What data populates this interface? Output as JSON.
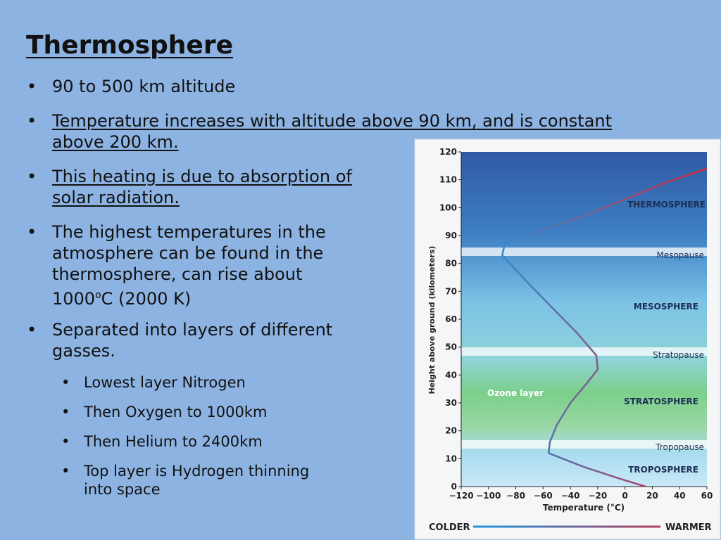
{
  "slide": {
    "title": "Thermosphere",
    "bullets": [
      "90 to 500 km altitude",
      "Temperature increases with altitude above 90 km,  and is constant above 200 km.",
      "This heating is due to absorption of solar radiation.",
      [
        "The highest temperatures in the atmosphere can be found in the thermosphere,  can rise about 1000",
        "o",
        "C (2000 K)"
      ],
      "Separated into layers of different gasses."
    ],
    "sub_bullets": [
      "Lowest layer Nitrogen",
      "Then Oxygen to 1000km",
      "Then Helium to 2400km",
      "Top layer is Hydrogen thinning into space"
    ]
  },
  "chart_data": {
    "type": "line",
    "x_label": "Temperature (°C)",
    "y_label": "Height above ground (kilometers)",
    "annotations": [
      "THERMOSPHERE",
      "Mesopause",
      "MESOSPHERE",
      "Stratopause",
      "Ozone layer",
      "STRATOSPHERE",
      "Tropopause",
      "TROPOSPHERE"
    ],
    "scale_left": "COLDER",
    "scale_right": "WARMER",
    "x": [
      15,
      -5,
      -30,
      -56,
      -55,
      -50,
      -40,
      -28,
      -20,
      -21,
      -35,
      -55,
      -75,
      -90,
      -88,
      -80,
      -60,
      -30,
      0,
      30,
      60
    ],
    "values": [
      0,
      3,
      7,
      12,
      16,
      22,
      30,
      37,
      42,
      47,
      55,
      65,
      75,
      83,
      87,
      89,
      92,
      97,
      103,
      109,
      114
    ],
    "colors": [
      "#2a8fd6",
      "#d8283a"
    ],
    "xlim": [
      -120,
      60
    ],
    "ylim": [
      0,
      120
    ],
    "xticks": [
      {
        "value": -120,
        "label": "−120"
      },
      {
        "value": -100,
        "label": "−100"
      },
      {
        "value": -80,
        "label": "−80"
      },
      {
        "value": -60,
        "label": "−60"
      },
      {
        "value": -40,
        "label": "−40"
      },
      {
        "value": -20,
        "label": "−20"
      },
      0,
      20,
      40,
      60
    ],
    "yticks": [
      0,
      10,
      20,
      30,
      40,
      50,
      60,
      70,
      80,
      90,
      100,
      110,
      120
    ]
  }
}
